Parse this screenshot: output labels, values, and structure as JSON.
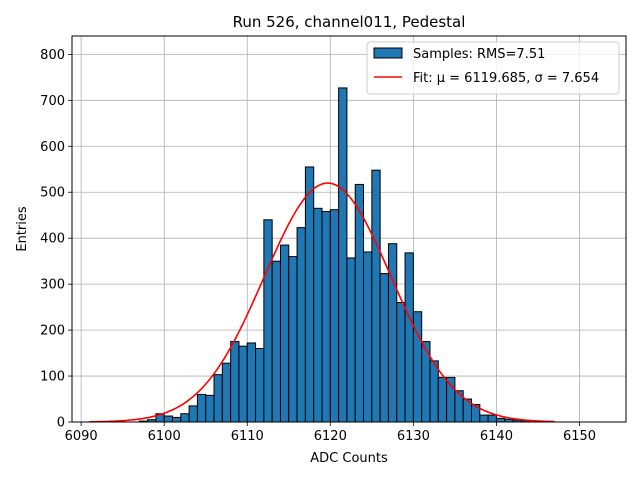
{
  "chart_data": {
    "type": "bar",
    "title": "Run 526, channel011, Pedestal",
    "xlabel": "ADC Counts",
    "ylabel": "Entries",
    "xlim": [
      6088.9,
      6155.6
    ],
    "ylim": [
      0,
      840
    ],
    "xticks": [
      6090,
      6100,
      6110,
      6120,
      6130,
      6140,
      6150
    ],
    "yticks": [
      0,
      100,
      200,
      300,
      400,
      500,
      600,
      700,
      800
    ],
    "grid": true,
    "legend_position": "upper right",
    "bin_width": 1,
    "bins_start": [
      6091,
      6092,
      6093,
      6094,
      6095,
      6096,
      6097,
      6098,
      6099,
      6100,
      6101,
      6102,
      6103,
      6104,
      6105,
      6106,
      6107,
      6108,
      6109,
      6110,
      6111,
      6112,
      6113,
      6114,
      6115,
      6116,
      6117,
      6118,
      6119,
      6120,
      6121,
      6122,
      6123,
      6124,
      6125,
      6126,
      6127,
      6128,
      6129,
      6130,
      6131,
      6132,
      6133,
      6134,
      6135,
      6136,
      6137,
      6138,
      6139,
      6140,
      6141,
      6142,
      6143,
      6144,
      6145,
      6146
    ],
    "series": [
      {
        "name": "Samples: RMS=7.51",
        "kind": "histogram",
        "color": "#1f77b4",
        "edgecolor": "#000000",
        "values": [
          0,
          0,
          0,
          0,
          0,
          0,
          2,
          5,
          18,
          13,
          10,
          18,
          35,
          60,
          58,
          103,
          128,
          175,
          165,
          172,
          160,
          440,
          350,
          385,
          360,
          423,
          555,
          465,
          458,
          462,
          727,
          357,
          517,
          370,
          548,
          323,
          388,
          260,
          368,
          240,
          175,
          133,
          97,
          97,
          68,
          50,
          38,
          15,
          15,
          8,
          6,
          4,
          3,
          0,
          0,
          0
        ]
      },
      {
        "name": "Fit: μ = 6119.685, σ = 7.654",
        "kind": "gaussian_fit",
        "color": "#ff0000",
        "mu": 6119.685,
        "sigma": 7.654,
        "amplitude": 520,
        "x_range": [
          6091,
          6147
        ]
      }
    ]
  },
  "legend": {
    "entries": [
      {
        "label": "Samples: RMS=7.51",
        "type": "patch",
        "color": "#1f77b4"
      },
      {
        "label": "Fit: μ = 6119.685, σ = 7.654",
        "type": "line",
        "color": "#ff0000"
      }
    ]
  }
}
